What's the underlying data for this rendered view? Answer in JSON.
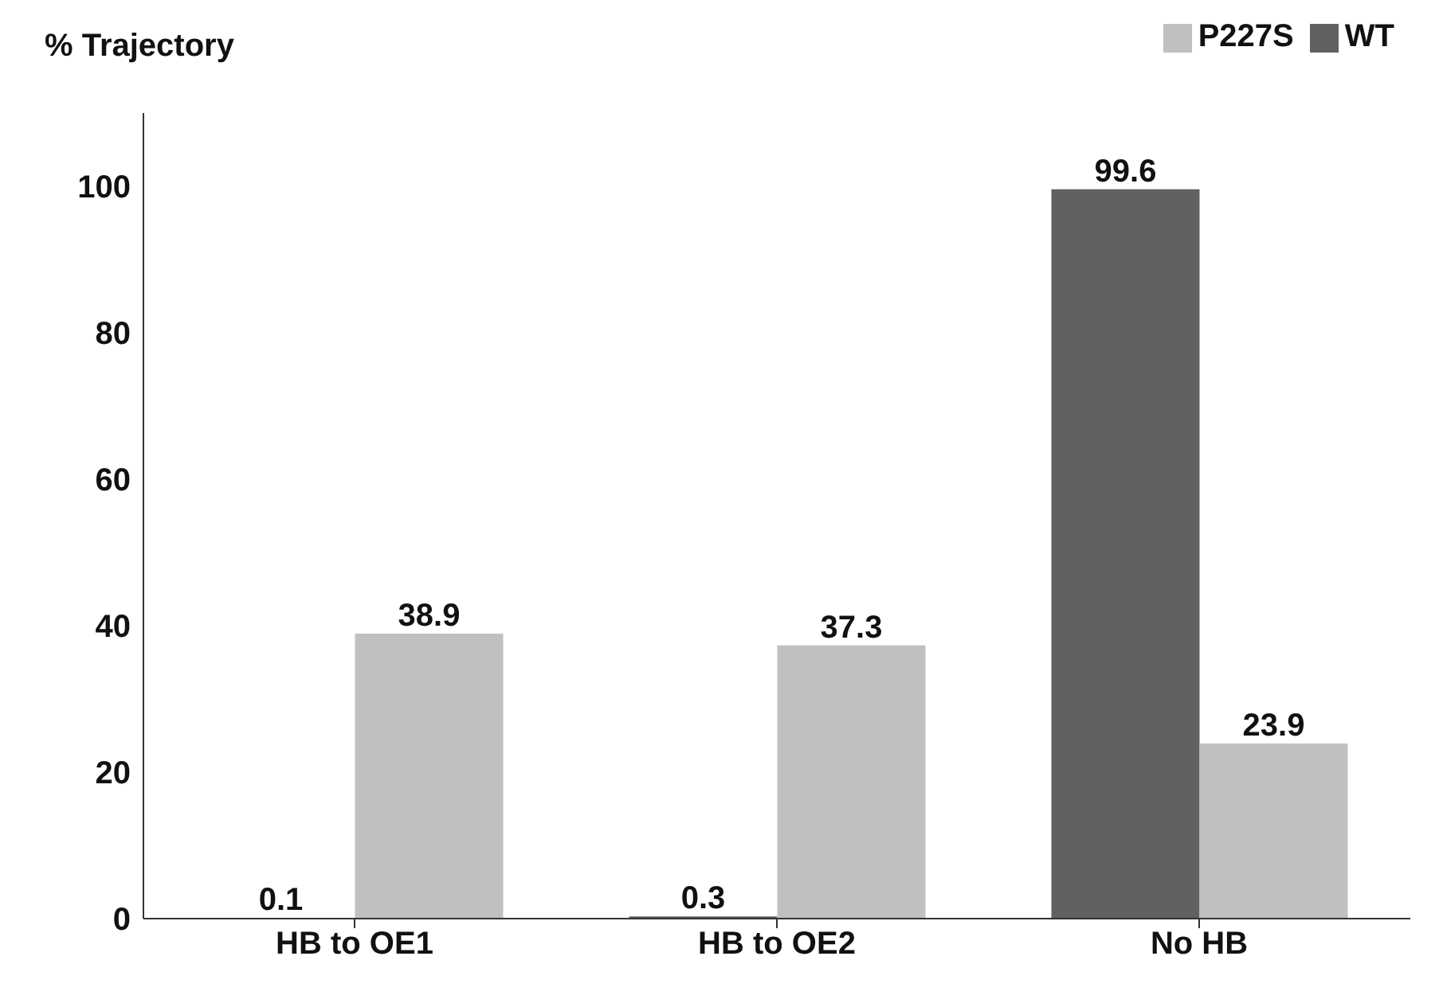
{
  "chart_data": {
    "type": "bar",
    "ylabel": "% Trajectory",
    "categories": [
      "HB to OE1",
      "HB to OE2",
      "No HB"
    ],
    "series": [
      {
        "name": "WT",
        "color": "#616161",
        "values": [
          0.1,
          0.3,
          99.6
        ]
      },
      {
        "name": "P227S",
        "color": "#c0c0c0",
        "values": [
          38.9,
          37.3,
          23.9
        ]
      }
    ],
    "ylim": [
      0,
      110
    ],
    "yticks": [
      0,
      20,
      40,
      60,
      80,
      100
    ],
    "grid": false,
    "legend": "top right",
    "data_labels": true
  }
}
